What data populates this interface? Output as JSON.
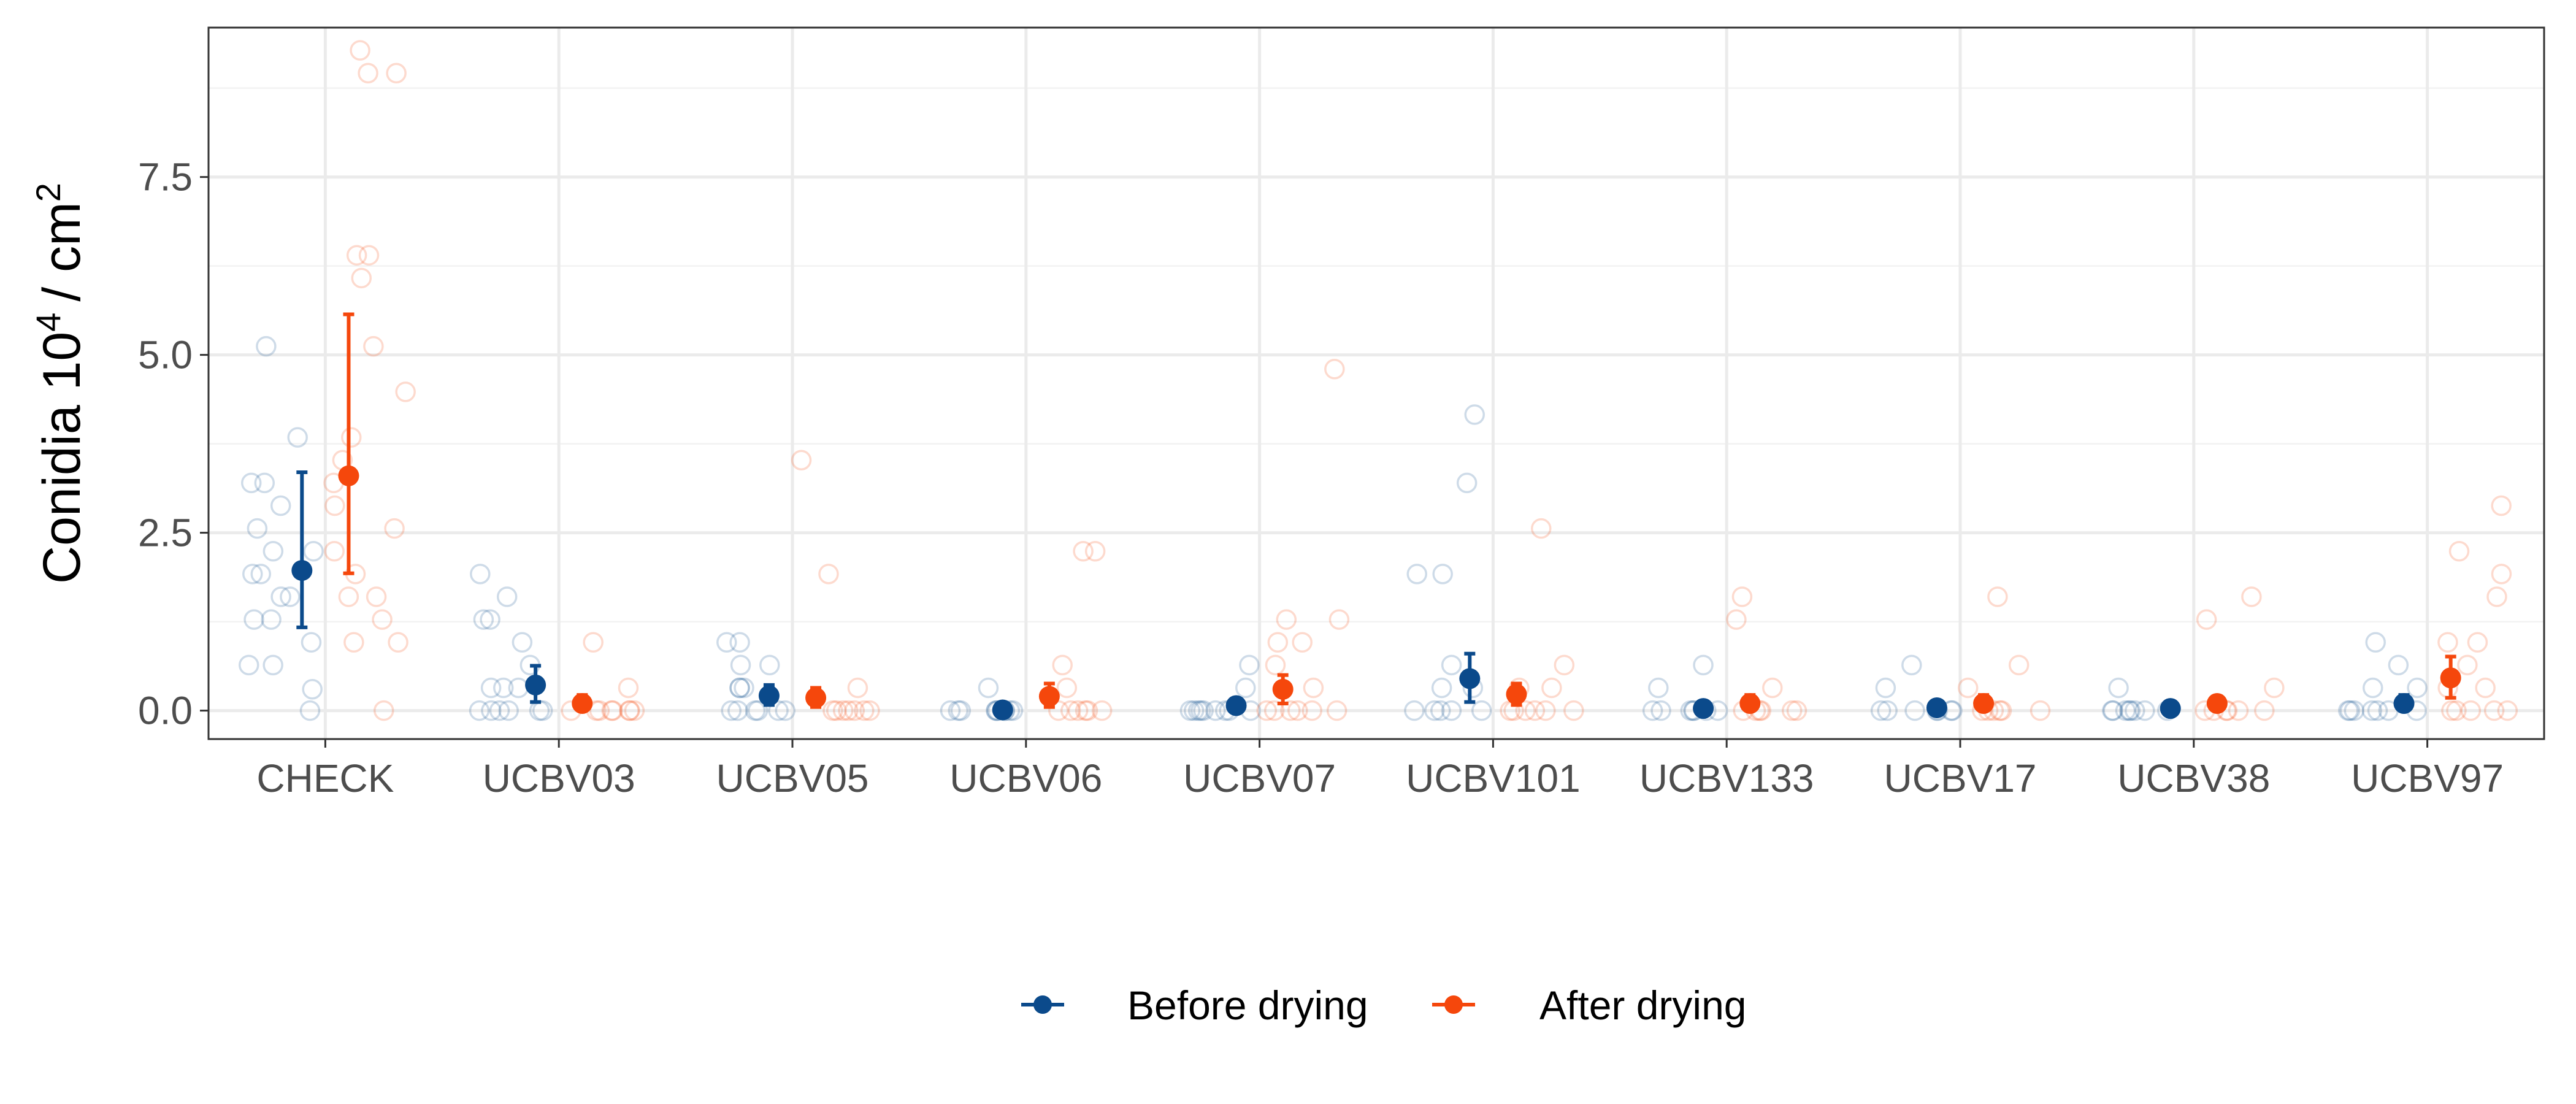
{
  "chart_data": {
    "type": "scatter",
    "ylabel": {
      "main": "Conidia 10",
      "sup1": "4",
      "unit": "/ cm",
      "sup2": "2"
    },
    "categories": [
      "CHECK",
      "UCBV03",
      "UCBV05",
      "UCBV06",
      "UCBV07",
      "UCBV101",
      "UCBV133",
      "UCBV17",
      "UCBV38",
      "UCBV97"
    ],
    "ylim": [
      -0.4,
      9.6
    ],
    "yticks": [
      0.0,
      2.5,
      5.0,
      7.5
    ],
    "ytick_labels": [
      "0.0",
      "2.5",
      "5.0",
      "7.5"
    ],
    "grid": true,
    "legend_position": "bottom",
    "series": [
      {
        "name": "Before drying",
        "color": "#0b4a8b",
        "mean": [
          1.97,
          0.36,
          0.21,
          0.01,
          0.07,
          0.45,
          0.03,
          0.04,
          0.03,
          0.1
        ],
        "lower": [
          1.17,
          0.12,
          0.08,
          0.0,
          0.0,
          0.12,
          0.0,
          0.0,
          0.0,
          0.0
        ],
        "upper": [
          3.35,
          0.63,
          0.36,
          0.03,
          0.15,
          0.8,
          0.08,
          0.1,
          0.07,
          0.22
        ],
        "points": [
          [
            0.0,
            0.3,
            0.64,
            0.64,
            0.96,
            1.28,
            1.28,
            1.6,
            1.6,
            1.92,
            1.92,
            2.24,
            2.24,
            2.56,
            2.88,
            3.2,
            3.2,
            3.84,
            5.12
          ],
          [
            0.0,
            0.0,
            0.0,
            0.0,
            0.0,
            0.0,
            0.32,
            0.32,
            0.32,
            0.64,
            0.96,
            1.28,
            1.28,
            1.6,
            1.92
          ],
          [
            0.0,
            0.0,
            0.0,
            0.0,
            0.0,
            0.0,
            0.32,
            0.32,
            0.32,
            0.64,
            0.64,
            0.96,
            0.96
          ],
          [
            0.0,
            0.0,
            0.0,
            0.0,
            0.0,
            0.0,
            0.0,
            0.0,
            0.0,
            0.0,
            0.32
          ],
          [
            0.0,
            0.0,
            0.0,
            0.0,
            0.0,
            0.0,
            0.0,
            0.0,
            0.0,
            0.32,
            0.64
          ],
          [
            0.0,
            0.0,
            0.0,
            0.0,
            0.0,
            0.32,
            0.32,
            0.64,
            1.92,
            1.92,
            3.2,
            4.16
          ],
          [
            0.0,
            0.0,
            0.0,
            0.0,
            0.0,
            0.0,
            0.0,
            0.32,
            0.64
          ],
          [
            0.0,
            0.0,
            0.0,
            0.0,
            0.0,
            0.0,
            0.0,
            0.32,
            0.64
          ],
          [
            0.0,
            0.0,
            0.0,
            0.0,
            0.0,
            0.0,
            0.0,
            0.0,
            0.32
          ],
          [
            0.0,
            0.0,
            0.0,
            0.0,
            0.0,
            0.0,
            0.0,
            0.32,
            0.32,
            0.64,
            0.96
          ]
        ]
      },
      {
        "name": "After drying",
        "color": "#f5470c",
        "mean": [
          3.3,
          0.1,
          0.18,
          0.2,
          0.3,
          0.23,
          0.1,
          0.1,
          0.1,
          0.46
        ],
        "lower": [
          1.93,
          0.0,
          0.05,
          0.05,
          0.1,
          0.08,
          0.0,
          0.0,
          0.0,
          0.18
        ],
        "upper": [
          5.57,
          0.22,
          0.32,
          0.38,
          0.5,
          0.38,
          0.22,
          0.22,
          0.2,
          0.76
        ],
        "points": [
          [
            0.0,
            0.96,
            0.96,
            1.28,
            1.6,
            1.6,
            1.92,
            2.24,
            2.56,
            2.88,
            3.2,
            3.52,
            3.84,
            4.48,
            5.12,
            6.08,
            6.4,
            6.4,
            8.96,
            8.96,
            9.28
          ],
          [
            0.0,
            0.0,
            0.0,
            0.0,
            0.0,
            0.0,
            0.0,
            0.0,
            0.32,
            0.96
          ],
          [
            0.0,
            0.0,
            0.0,
            0.0,
            0.0,
            0.0,
            0.0,
            0.32,
            1.92,
            3.52
          ],
          [
            0.0,
            0.0,
            0.0,
            0.0,
            0.0,
            0.0,
            0.32,
            0.64,
            2.24,
            2.24
          ],
          [
            0.0,
            0.0,
            0.0,
            0.0,
            0.0,
            0.0,
            0.32,
            0.64,
            0.96,
            0.96,
            1.28,
            1.28,
            4.8
          ],
          [
            0.0,
            0.0,
            0.0,
            0.0,
            0.0,
            0.0,
            0.32,
            0.32,
            0.64,
            2.56
          ],
          [
            0.0,
            0.0,
            0.0,
            0.0,
            0.0,
            0.0,
            0.32,
            1.28,
            1.6
          ],
          [
            0.0,
            0.0,
            0.0,
            0.0,
            0.0,
            0.0,
            0.32,
            0.64,
            1.6
          ],
          [
            0.0,
            0.0,
            0.0,
            0.0,
            0.0,
            0.0,
            0.32,
            1.28,
            1.6
          ],
          [
            0.0,
            0.0,
            0.0,
            0.0,
            0.0,
            0.32,
            0.32,
            0.64,
            0.96,
            0.96,
            1.6,
            1.92,
            2.24,
            2.88
          ]
        ]
      }
    ]
  }
}
